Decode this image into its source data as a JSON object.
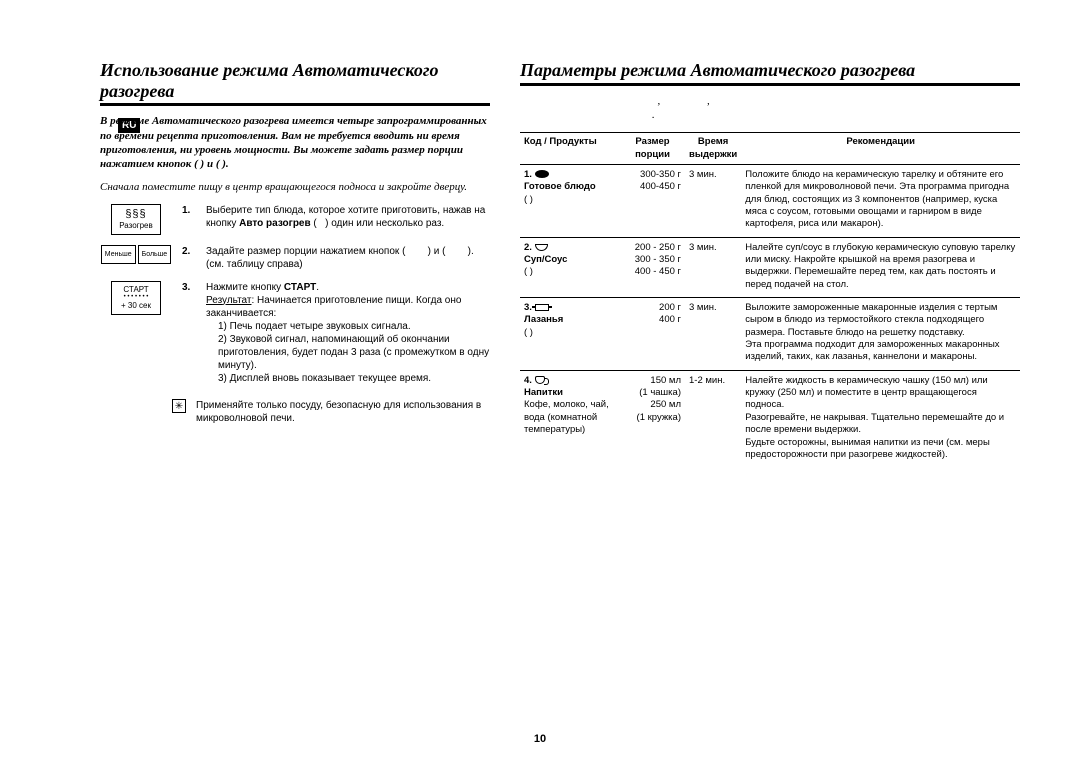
{
  "lang_tag": "RU",
  "page_number": "10",
  "left": {
    "title": "Использование режима Автоматического разогрева",
    "intro": "В режиме Автоматического разогрева имеется четыре запрограммированных по времени рецепта приготовления. Вам не требуется вводить ни время приготовления, ни уровень мощности. Вы можете задать размер порции нажатием кнопок (           ) и (           ).",
    "intro2": "Сначала поместите пищу в центр вращающегося подноса и закройте дверцу.",
    "icon1_line1": "§§§",
    "icon1_line2": "Разогрев",
    "icon2a": "Меньше",
    "icon2b": "Больше",
    "icon3_line1": "СТАРТ",
    "icon3_line2": "• • • • • • •",
    "icon3_line3": "+ 30 сек",
    "steps": [
      {
        "num": "1.",
        "text": "Выберите тип блюда, которое хотите приготовить, нажав на кнопку <b>Авто разогрев</b> ( &nbsp; ) один или несколько раз."
      },
      {
        "num": "2.",
        "text": "Задайте размер порции нажатием кнопок (&nbsp;&nbsp;&nbsp;&nbsp;&nbsp;&nbsp;&nbsp;&nbsp;) и (&nbsp;&nbsp;&nbsp;&nbsp;&nbsp;&nbsp;&nbsp;&nbsp;). (см. таблицу справа)"
      },
      {
        "num": "3.",
        "text": "Нажмите кнопку <b>СТАРТ</b>.",
        "result_label": "Результат",
        "result_intro": ":  Начинается приготовление пищи. Когда оно заканчивается:",
        "sub": [
          "1) Печь подает четыре звуковых сигнала.",
          "2) Звуковой сигнал, напоминающий об окончании приготовления, будет подан 3 раза (с промежутком в одну минуту).",
          "3) Дисплей вновь показывает текущее время."
        ]
      }
    ],
    "note_icon": "✳",
    "note": "Применяйте только посуду, безопасную для использования в микроволновой печи."
  },
  "right": {
    "title": "Параметры режима Автоматического разогрева",
    "subhead": "&nbsp;&nbsp;&nbsp;&nbsp;&nbsp;&nbsp;&nbsp;&nbsp;&nbsp;&nbsp;&nbsp;&nbsp;&nbsp;&nbsp;&nbsp;&nbsp;&nbsp;&nbsp;&nbsp;&nbsp;&nbsp;&nbsp;&nbsp;&nbsp;&nbsp;&nbsp;&nbsp;&nbsp;&nbsp;&nbsp;&nbsp;&nbsp;&nbsp;&nbsp;&nbsp;&nbsp;&nbsp;&nbsp;&nbsp;&nbsp;&nbsp;&nbsp;&nbsp;&nbsp;&nbsp;&nbsp;&nbsp;&nbsp;&nbsp;&nbsp;,&nbsp;&nbsp;&nbsp;&nbsp;&nbsp;&nbsp;&nbsp;&nbsp;&nbsp;&nbsp;&nbsp;&nbsp;&nbsp;&nbsp;&nbsp;&nbsp;&nbsp;,<br>&nbsp;&nbsp;&nbsp;&nbsp;&nbsp;&nbsp;&nbsp;&nbsp;&nbsp;&nbsp;&nbsp;&nbsp;&nbsp;&nbsp;&nbsp;&nbsp;&nbsp;&nbsp;&nbsp;&nbsp;&nbsp;&nbsp;&nbsp;&nbsp;&nbsp;&nbsp;&nbsp;&nbsp;&nbsp;&nbsp;&nbsp;&nbsp;&nbsp;&nbsp;&nbsp;&nbsp;&nbsp;&nbsp;&nbsp;&nbsp;&nbsp;&nbsp;&nbsp;&nbsp;&nbsp;&nbsp;&nbsp;&nbsp;.",
    "headers": {
      "code": "Код / Продукты",
      "size": "Размер порции",
      "time": "Время выдержки",
      "rec": "Рекомендации"
    },
    "rows": [
      {
        "code_num": "1.",
        "code_name": "Готовое блюдо",
        "code_extra": "(                 )",
        "icon": "food",
        "size": "300-350 г\n400-450 г",
        "time": "3 мин.",
        "rec": "Положите блюдо на керамическую тарелку и обтяните его пленкой для микроволновой печи. Эта программа пригодна для блюд, состоящих из 3 компонентов (например, куска мяса с соусом, готовыми овощами и гарниром в виде картофеля, риса или макарон)."
      },
      {
        "code_num": "2.",
        "code_name": "Суп/Соус",
        "code_extra": "(                 )",
        "icon": "bowl",
        "size": "200 - 250 г\n300 - 350 г\n400 - 450 г",
        "time": "3 мин.",
        "rec": "Налейте суп/соус в глубокую керамическую суповую тарелку или миску. Накройте крышкой на время разогрева и выдержки. Перемешайте перед тем, как дать постоять и перед подачей на стол."
      },
      {
        "code_num": "3.",
        "code_name": "Лазанья",
        "code_extra": "(                 )",
        "icon": "casserole",
        "size": "200 г\n400 г",
        "time": "3 мин.",
        "rec": "Выложите замороженные макаронные изделия с тертым сыром в блюдо из термостойкого стекла подходящего размера. Поставьте блюдо на решетку подставку.\nЭта программа подходит для замороженных макаронных изделий, таких, как лазанья, каннелони и макароны."
      },
      {
        "code_num": "4.",
        "code_name": "Напитки",
        "code_extra": "Кофе, молоко, чай, вода (комнатной температуры)",
        "icon": "cup",
        "size": "150 мл\n(1 чашка)\n250 мл\n(1 кружка)",
        "time": "1-2 мин.",
        "rec": "Налейте жидкость в керамическую чашку (150 мл) или кружку (250 мл) и поместите в центр вращающегося подноса.\nРазогревайте, не накрывая. Тщательно перемешайте до и после времени выдержки.\nБудьте осторожны, вынимая напитки из печи (см. меры предосторожности при разогреве жидкостей)."
      }
    ]
  }
}
